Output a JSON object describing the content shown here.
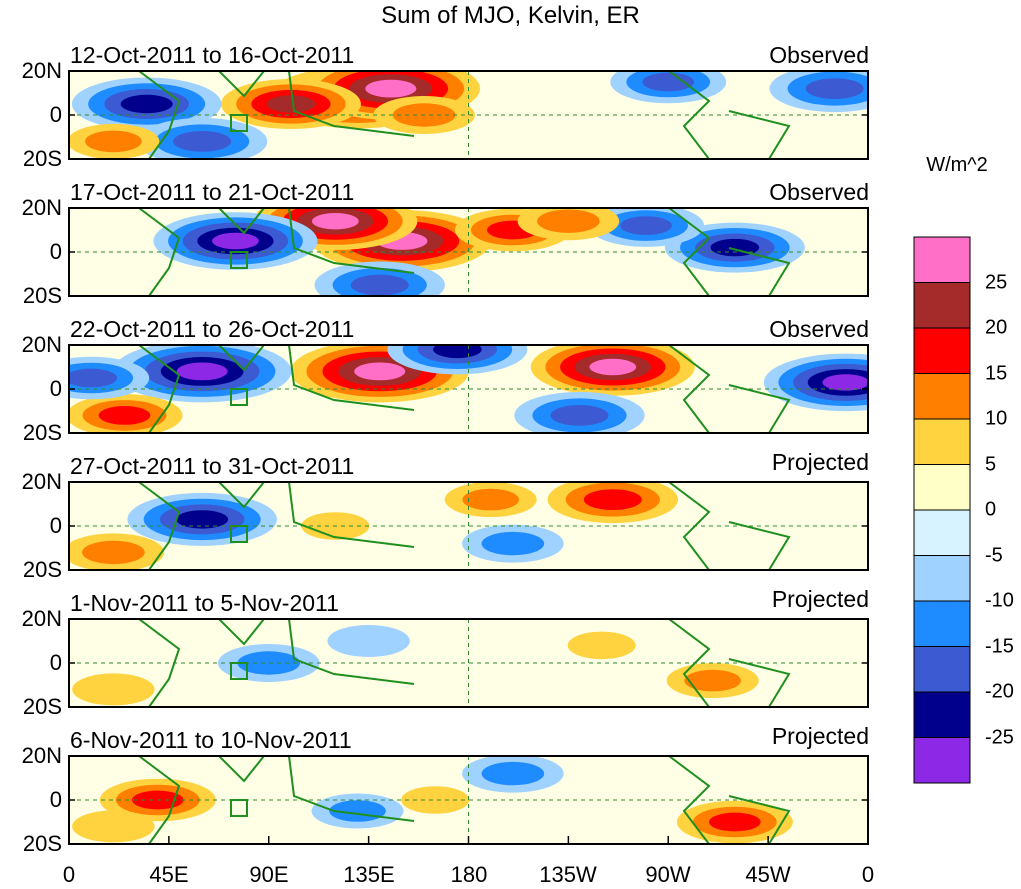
{
  "title": "Sum of MJO, Kelvin, ER",
  "units_label": "W/m^2",
  "panels": [
    {
      "date_range": "12-Oct-2011 to 16-Oct-2011",
      "status": "Observed"
    },
    {
      "date_range": "17-Oct-2011 to 21-Oct-2011",
      "status": "Observed"
    },
    {
      "date_range": "22-Oct-2011 to 26-Oct-2011",
      "status": "Observed"
    },
    {
      "date_range": "27-Oct-2011 to 31-Oct-2011",
      "status": "Projected"
    },
    {
      "date_range": "1-Nov-2011 to 5-Nov-2011",
      "status": "Projected"
    },
    {
      "date_range": "6-Nov-2011 to 10-Nov-2011",
      "status": "Projected"
    }
  ],
  "y_tick_labels": [
    "20N",
    "0",
    "20S"
  ],
  "x_tick_labels": [
    "0",
    "45E",
    "90E",
    "135E",
    "180",
    "135W",
    "90W",
    "45W",
    "0"
  ],
  "colorbar": {
    "labels": [
      "25",
      "20",
      "15",
      "10",
      "5",
      "0",
      "-5",
      "-10",
      "-15",
      "-20",
      "-25"
    ],
    "colors": [
      "#ff6ec7",
      "#a52a2a",
      "#ff0000",
      "#ff7f00",
      "#ffd23f",
      "#ffffc8",
      "#d7f3ff",
      "#a0d2ff",
      "#1e8cff",
      "#3c5ad2",
      "#00008c",
      "#8c28e6"
    ]
  },
  "chart_data": {
    "type": "heatmap",
    "title": "Sum of MJO, Kelvin, ER",
    "xlabel": "",
    "ylabel": "",
    "x_ticks": [
      "0",
      "45E",
      "90E",
      "135E",
      "180",
      "135W",
      "90W",
      "45W",
      "0"
    ],
    "y_ticks": [
      "20N",
      "0",
      "20S"
    ],
    "xlim": [
      0,
      360
    ],
    "ylim": [
      -20,
      20
    ],
    "levels": [
      -25,
      -20,
      -15,
      -10,
      -5,
      0,
      5,
      10,
      15,
      20,
      25
    ],
    "units": "W/m^2",
    "panels": [
      {
        "label": "12-Oct-2011 to 16-Oct-2011",
        "status": "Observed",
        "features": [
          {
            "lon": 130,
            "lat": 8,
            "value": 28
          },
          {
            "lon": 145,
            "lat": 12,
            "value": 28
          },
          {
            "lon": 100,
            "lat": 5,
            "value": 20
          },
          {
            "lon": 35,
            "lat": 5,
            "value": -22
          },
          {
            "lon": 60,
            "lat": -12,
            "value": -18
          },
          {
            "lon": 160,
            "lat": 0,
            "value": 12
          },
          {
            "lon": 270,
            "lat": 15,
            "value": -15
          },
          {
            "lon": 345,
            "lat": 12,
            "value": -18
          },
          {
            "lon": 20,
            "lat": -12,
            "value": 10
          }
        ]
      },
      {
        "label": "17-Oct-2011 to 21-Oct-2011",
        "status": "Observed",
        "features": [
          {
            "lon": 150,
            "lat": 5,
            "value": 28
          },
          {
            "lon": 120,
            "lat": 14,
            "value": 25
          },
          {
            "lon": 200,
            "lat": 10,
            "value": 15
          },
          {
            "lon": 75,
            "lat": 5,
            "value": -25
          },
          {
            "lon": 300,
            "lat": 2,
            "value": -20
          },
          {
            "lon": 260,
            "lat": 12,
            "value": -15
          },
          {
            "lon": 140,
            "lat": -15,
            "value": -18
          },
          {
            "lon": 225,
            "lat": 14,
            "value": 12
          }
        ]
      },
      {
        "label": "22-Oct-2011 to 26-Oct-2011",
        "status": "Observed",
        "features": [
          {
            "lon": 140,
            "lat": 8,
            "value": 28
          },
          {
            "lon": 245,
            "lat": 10,
            "value": 25
          },
          {
            "lon": 60,
            "lat": 8,
            "value": -28
          },
          {
            "lon": 175,
            "lat": 18,
            "value": -20
          },
          {
            "lon": 230,
            "lat": -12,
            "value": -18
          },
          {
            "lon": 350,
            "lat": 3,
            "value": -25
          },
          {
            "lon": 25,
            "lat": -12,
            "value": 15
          },
          {
            "lon": 10,
            "lat": 5,
            "value": -15
          }
        ]
      },
      {
        "label": "27-Oct-2011 to 31-Oct-2011",
        "status": "Projected",
        "features": [
          {
            "lon": 60,
            "lat": 3,
            "value": -22
          },
          {
            "lon": 245,
            "lat": 12,
            "value": 18
          },
          {
            "lon": 190,
            "lat": 12,
            "value": 10
          },
          {
            "lon": 20,
            "lat": -12,
            "value": 12
          },
          {
            "lon": 120,
            "lat": 0,
            "value": 5
          },
          {
            "lon": 200,
            "lat": -8,
            "value": -12
          }
        ]
      },
      {
        "label": "1-Nov-2011 to 5-Nov-2011",
        "status": "Projected",
        "features": [
          {
            "lon": 290,
            "lat": -8,
            "value": 10
          },
          {
            "lon": 20,
            "lat": -12,
            "value": 8
          },
          {
            "lon": 90,
            "lat": 0,
            "value": -12
          },
          {
            "lon": 135,
            "lat": 10,
            "value": -8
          },
          {
            "lon": 240,
            "lat": 8,
            "value": 5
          }
        ]
      },
      {
        "label": "6-Nov-2011 to 10-Nov-2011",
        "status": "Projected",
        "features": [
          {
            "lon": 40,
            "lat": 0,
            "value": 15
          },
          {
            "lon": 300,
            "lat": -10,
            "value": 15
          },
          {
            "lon": 200,
            "lat": 12,
            "value": -12
          },
          {
            "lon": 130,
            "lat": -5,
            "value": -10
          },
          {
            "lon": 20,
            "lat": -12,
            "value": 8
          },
          {
            "lon": 165,
            "lat": 0,
            "value": 5
          }
        ]
      }
    ]
  }
}
